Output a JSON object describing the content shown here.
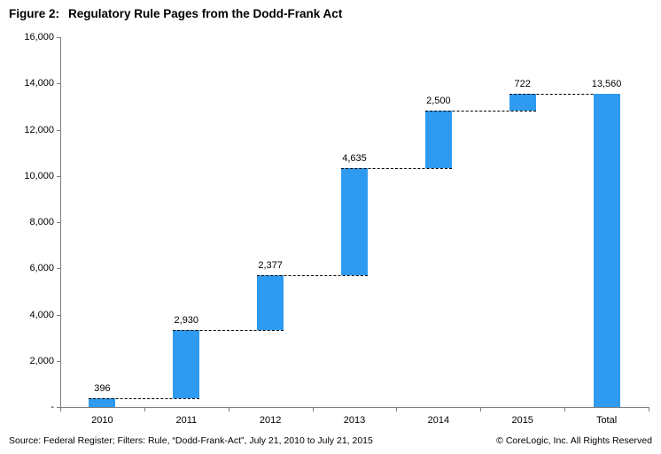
{
  "title": {
    "prefix": "Figure 2:",
    "text": "Regulatory Rule Pages from the Dodd-Frank Act"
  },
  "footer": {
    "source": "Source: Federal Register; Filters: Rule,  “Dodd-Frank-Act”, July 21, 2010 to July 21, 2015",
    "copyright": "© CoreLogic, Inc. All Rights Reserved"
  },
  "chart_data": {
    "type": "bar",
    "subtype": "waterfall",
    "title": "Figure 2: Regulatory Rule Pages from the Dodd-Frank Act",
    "categories": [
      "2010",
      "2011",
      "2012",
      "2013",
      "2014",
      "2015",
      "Total"
    ],
    "values": [
      396,
      2930,
      2377,
      4635,
      2500,
      722,
      13560
    ],
    "value_labels": [
      "396",
      "2,930",
      "2,377",
      "4,635",
      "2,500",
      "722",
      "13,560"
    ],
    "cumulative": [
      396,
      3326,
      5703,
      10338,
      12838,
      13560,
      13560
    ],
    "total_index": 6,
    "xlabel": "",
    "ylabel": "",
    "ylim": [
      0,
      16000
    ],
    "ytick_step": 2000,
    "ytick_labels": [
      "-",
      "2,000",
      "4,000",
      "6,000",
      "8,000",
      "10,000",
      "12,000",
      "14,000",
      "16,000"
    ],
    "grid": false,
    "legend": "none",
    "bar_color": "#2E9BF0",
    "connector_style": "dashed",
    "connector_color": "#000000",
    "axis_color": "#7f7f7f"
  }
}
